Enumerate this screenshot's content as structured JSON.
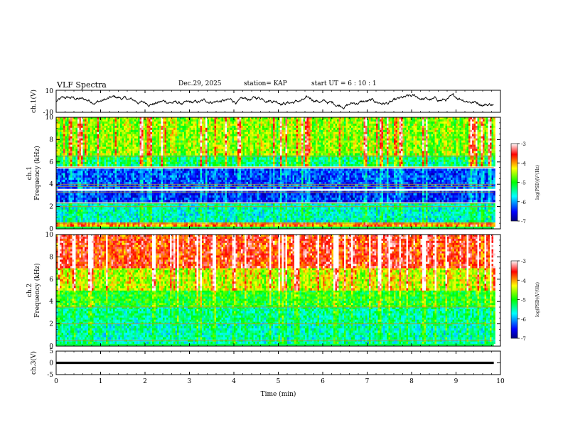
{
  "header": {
    "title": "VLF Spectra",
    "date": "Dec.29, 2025",
    "station": "station= KAP",
    "start_ut": "start  UT =   6  : 10 : 1"
  },
  "chart_data": [
    {
      "type": "line",
      "title": "VLF Spectra",
      "ylabel": "ch.1(V)",
      "ylim": [
        -10,
        10
      ],
      "yticks": [
        "10",
        "-10"
      ],
      "xlim": [
        0,
        10
      ],
      "series": [
        {
          "name": "ch.1 waveform",
          "mean": 0,
          "amplitude": 4.5,
          "end_time_min": 9.85
        }
      ]
    },
    {
      "type": "heatmap",
      "ylabel_line1": "ch.1",
      "ylabel_line2": "Frequency  (kHz)",
      "ylim_khz": [
        0,
        10
      ],
      "yticks": [
        "0",
        "2",
        "4",
        "6",
        "8",
        "10"
      ],
      "colorbar": {
        "label": "log(PSD)(V²/Hz)",
        "ticks": [
          "-3",
          "-4",
          "-5",
          "-6",
          "-7"
        ],
        "range": [
          -7,
          -3
        ]
      },
      "bands_khz": [
        {
          "from": 0.2,
          "to": 0.6,
          "level": -4.0
        },
        {
          "from": 0.6,
          "to": 2.3,
          "level": -5.6
        },
        {
          "from": 2.4,
          "to": 3.4,
          "level": -6.4
        },
        {
          "from": 3.6,
          "to": 5.4,
          "level": -6.3
        },
        {
          "from": 5.6,
          "to": 6.6,
          "level": -5.3
        },
        {
          "from": 6.6,
          "to": 10,
          "level": -4.6
        }
      ],
      "lines_khz": [
        0.5,
        2.0,
        2.3,
        3.3,
        3.8,
        4.0,
        5.5,
        6.5
      ]
    },
    {
      "type": "heatmap",
      "ylabel_line1": "ch.2",
      "ylabel_line2": "Frequency  (kHz)",
      "ylim_khz": [
        0,
        10
      ],
      "yticks": [
        "0",
        "2",
        "4",
        "6",
        "8",
        "10"
      ],
      "colorbar": {
        "label": "log(PSD)(V²/Hz)",
        "ticks": [
          "-3",
          "-4",
          "-5",
          "-6",
          "-7"
        ],
        "range": [
          -7,
          -3
        ]
      },
      "bands_khz": [
        {
          "from": 0.2,
          "to": 2.0,
          "level": -5.5
        },
        {
          "from": 2.0,
          "to": 3.5,
          "level": -5.4
        },
        {
          "from": 3.5,
          "to": 5.0,
          "level": -5.0
        },
        {
          "from": 5.0,
          "to": 7.0,
          "level": -4.4
        },
        {
          "from": 7.0,
          "to": 10,
          "level": -3.6
        }
      ],
      "lines_khz": [
        0.5,
        2.0,
        3.5
      ]
    },
    {
      "type": "line",
      "ylabel": "ch.3(V)",
      "ylim": [
        -5,
        5
      ],
      "yticks": [
        "5",
        "0",
        "-5"
      ],
      "xlabel": "Time  (min)",
      "xticks": [
        "0",
        "1",
        "2",
        "3",
        "4",
        "5",
        "6",
        "7",
        "8",
        "9",
        "10"
      ],
      "xlim": [
        0,
        10
      ],
      "series": [
        {
          "name": "ch.3 waveform",
          "mean": 0,
          "amplitude": 0.5,
          "end_time_min": 9.85
        }
      ]
    }
  ]
}
